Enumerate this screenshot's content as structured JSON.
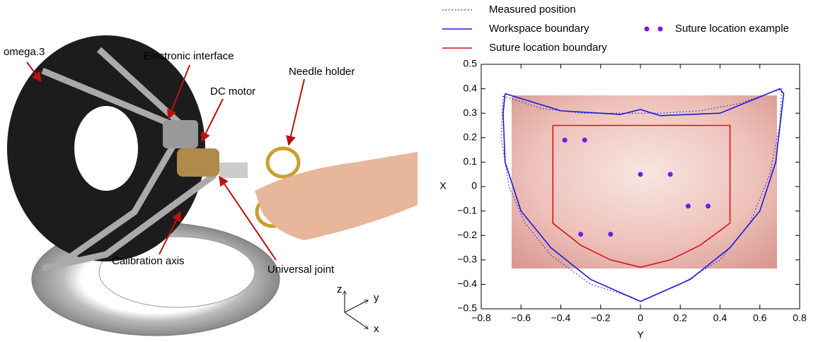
{
  "photo": {
    "labels": [
      "omega.3",
      "Electronic interface",
      "DC motor",
      "Needle holder",
      "Calibration axis",
      "Universal joint",
      "z",
      "y",
      "x"
    ]
  },
  "chart_data": {
    "type": "line",
    "x_label": "Y",
    "y_label": "X",
    "xlim": [
      -0.8,
      0.8
    ],
    "ylim": [
      -0.5,
      0.5
    ],
    "xticks": [
      {
        "value": -0.8,
        "label": "−0.8"
      },
      {
        "value": -0.6,
        "label": "−0.6"
      },
      {
        "value": -0.4,
        "label": "−0.4"
      },
      {
        "value": -0.2,
        "label": "−0.2"
      },
      0,
      0.2,
      0.4,
      0.6,
      0.8
    ],
    "yticks": [
      {
        "value": -0.5,
        "label": "−0.5"
      },
      {
        "value": -0.4,
        "label": "−0.4"
      },
      {
        "value": -0.3,
        "label": "−0.3"
      },
      {
        "value": -0.2,
        "label": "−0.2"
      },
      {
        "value": -0.1,
        "label": "−0.1"
      },
      0,
      0.1,
      0.2,
      0.3,
      0.4,
      0.5
    ],
    "series": [
      {
        "name": "Measured position",
        "color": "#3333dd",
        "style": "dotted",
        "x": [
          -0.69,
          -0.7,
          -0.66,
          -0.58,
          -0.45,
          -0.25,
          -0.05,
          0,
          0.2,
          0.4,
          0.55,
          0.65,
          0.7,
          0.71,
          0.5,
          0.3,
          0.1,
          -0.1,
          -0.3,
          -0.5,
          -0.69
        ],
        "values": [
          0.37,
          0.2,
          0,
          -0.15,
          -0.28,
          -0.4,
          -0.45,
          -0.47,
          -0.4,
          -0.3,
          -0.15,
          0.05,
          0.25,
          0.4,
          0.34,
          0.31,
          0.3,
          0.3,
          0.3,
          0.32,
          0.37
        ]
      },
      {
        "name": "Workspace boundary",
        "color": "#1a1adc",
        "style": "solid",
        "x": [
          -0.68,
          -0.4,
          -0.1,
          0,
          0.1,
          0.4,
          0.7,
          0.72,
          0.68,
          0.6,
          0.45,
          0.25,
          0,
          -0.25,
          -0.45,
          -0.6,
          -0.68,
          -0.69,
          -0.68
        ],
        "values": [
          0.38,
          0.31,
          0.295,
          0.315,
          0.29,
          0.3,
          0.4,
          0.38,
          0.1,
          -0.1,
          -0.25,
          -0.38,
          -0.47,
          -0.38,
          -0.25,
          -0.1,
          0.1,
          0.3,
          0.38
        ]
      },
      {
        "name": "Suture location boundary",
        "color": "#dd1111",
        "style": "solid",
        "x": [
          -0.44,
          0.45,
          0.45,
          0.3,
          0.15,
          0,
          -0.15,
          -0.3,
          -0.44,
          -0.44
        ],
        "values": [
          0.25,
          0.25,
          -0.15,
          -0.24,
          -0.3,
          -0.33,
          -0.3,
          -0.24,
          -0.15,
          0.25
        ]
      },
      {
        "name": "Suture location example",
        "color": "#7a1ae0",
        "style": "markers",
        "x": [
          -0.38,
          -0.28,
          0,
          0.15,
          0.24,
          0.34,
          -0.3,
          -0.15
        ],
        "values": [
          0.19,
          0.19,
          0.05,
          0.05,
          -0.08,
          -0.08,
          -0.195,
          -0.195
        ]
      }
    ]
  }
}
